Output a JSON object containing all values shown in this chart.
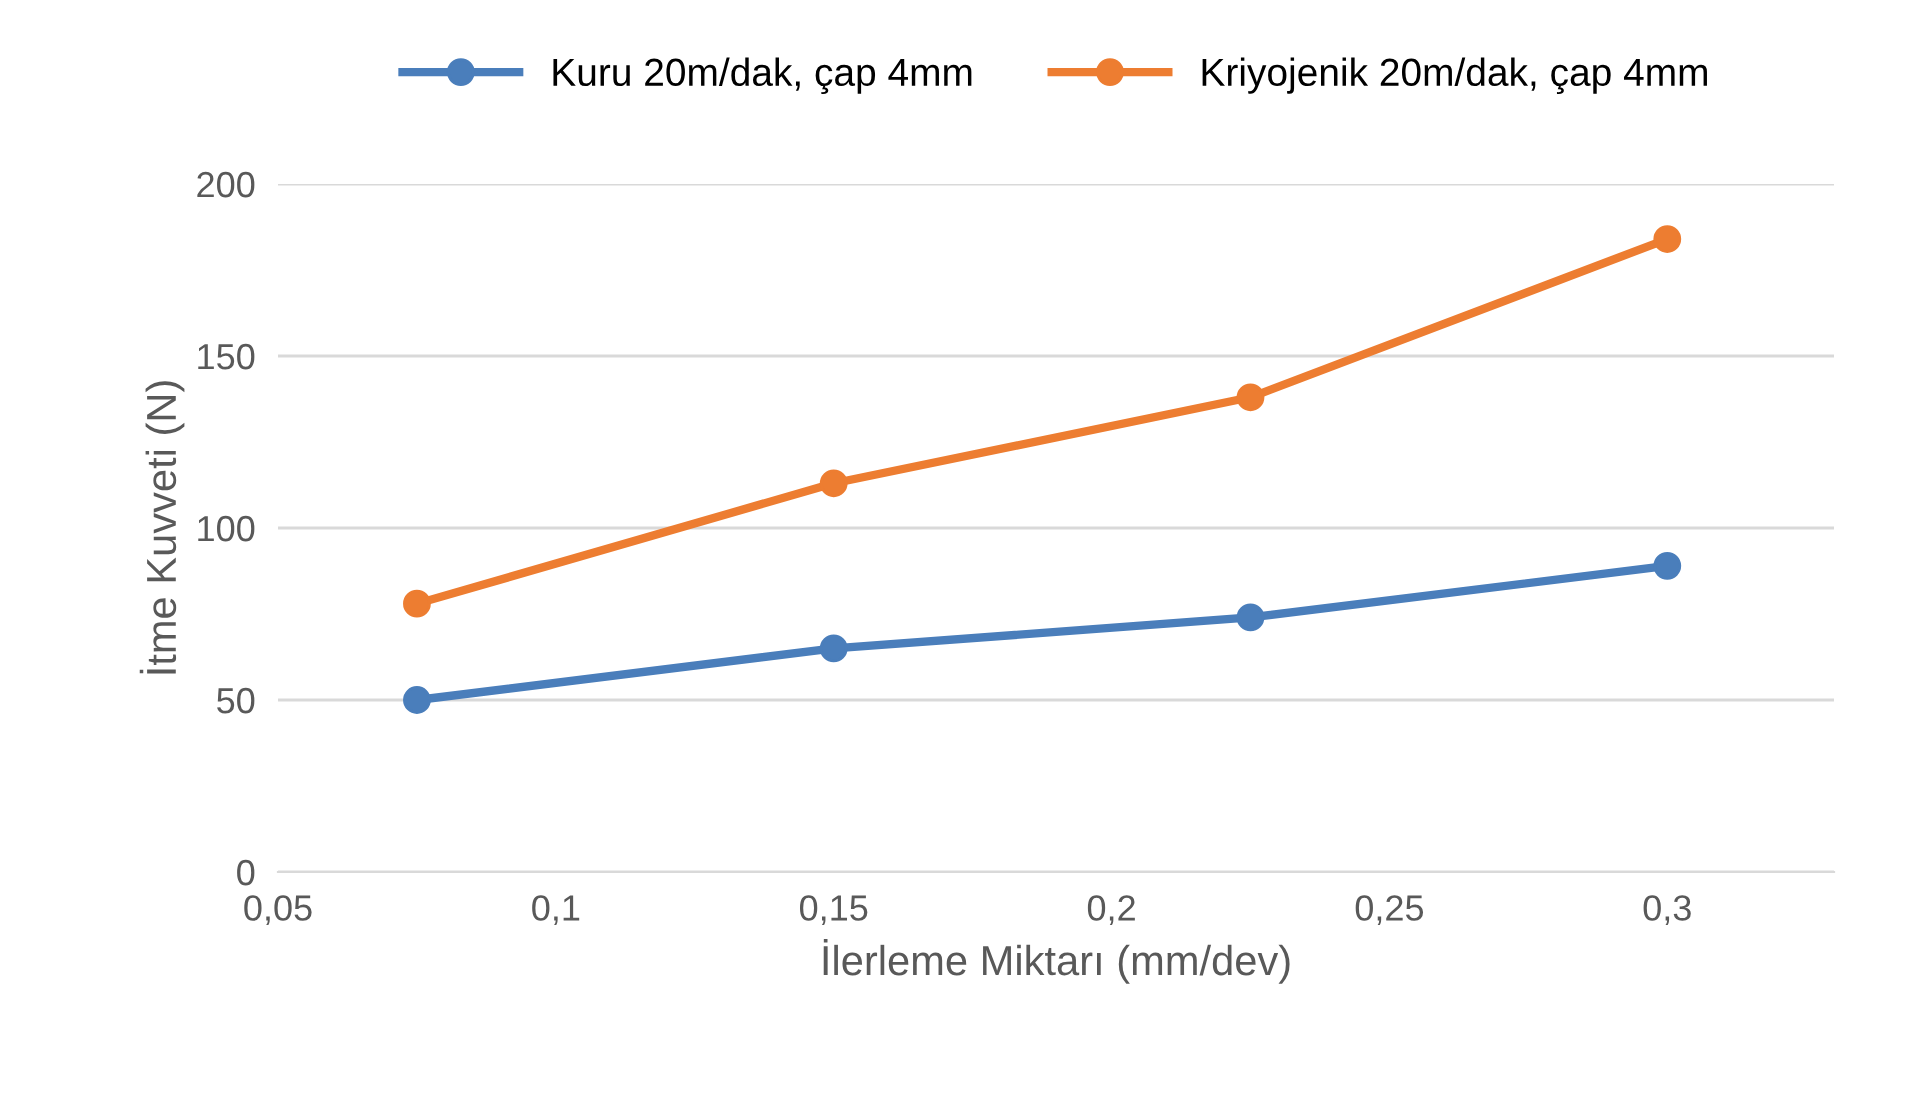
{
  "chart_data": {
    "type": "line",
    "xlabel": "İlerleme Miktarı (mm/dev)",
    "ylabel": "İtme Kuvveti (N)",
    "x": [
      0.075,
      0.15,
      0.225,
      0.3
    ],
    "series": [
      {
        "name": "Kuru 20m/dak, çap 4mm",
        "color": "#4a7ebb",
        "values": [
          50,
          65,
          74,
          89
        ]
      },
      {
        "name": "Kriyojenik 20m/dak, çap 4mm",
        "color": "#ed7d31",
        "values": [
          78,
          113,
          138,
          184
        ]
      }
    ],
    "xlim": [
      0.05,
      0.33
    ],
    "xticks": [
      {
        "value": 0.05,
        "label": "0,05"
      },
      {
        "value": 0.1,
        "label": "0,1"
      },
      {
        "value": 0.15,
        "label": "0,15"
      },
      {
        "value": 0.2,
        "label": "0,2"
      },
      {
        "value": 0.25,
        "label": "0,25"
      },
      {
        "value": 0.3,
        "label": "0,3"
      }
    ],
    "ylim": [
      0,
      200
    ],
    "yticks": [
      0,
      50,
      100,
      150,
      200
    ],
    "grid": "y",
    "legend": "top",
    "marker": "circle",
    "line_style": "solid"
  }
}
